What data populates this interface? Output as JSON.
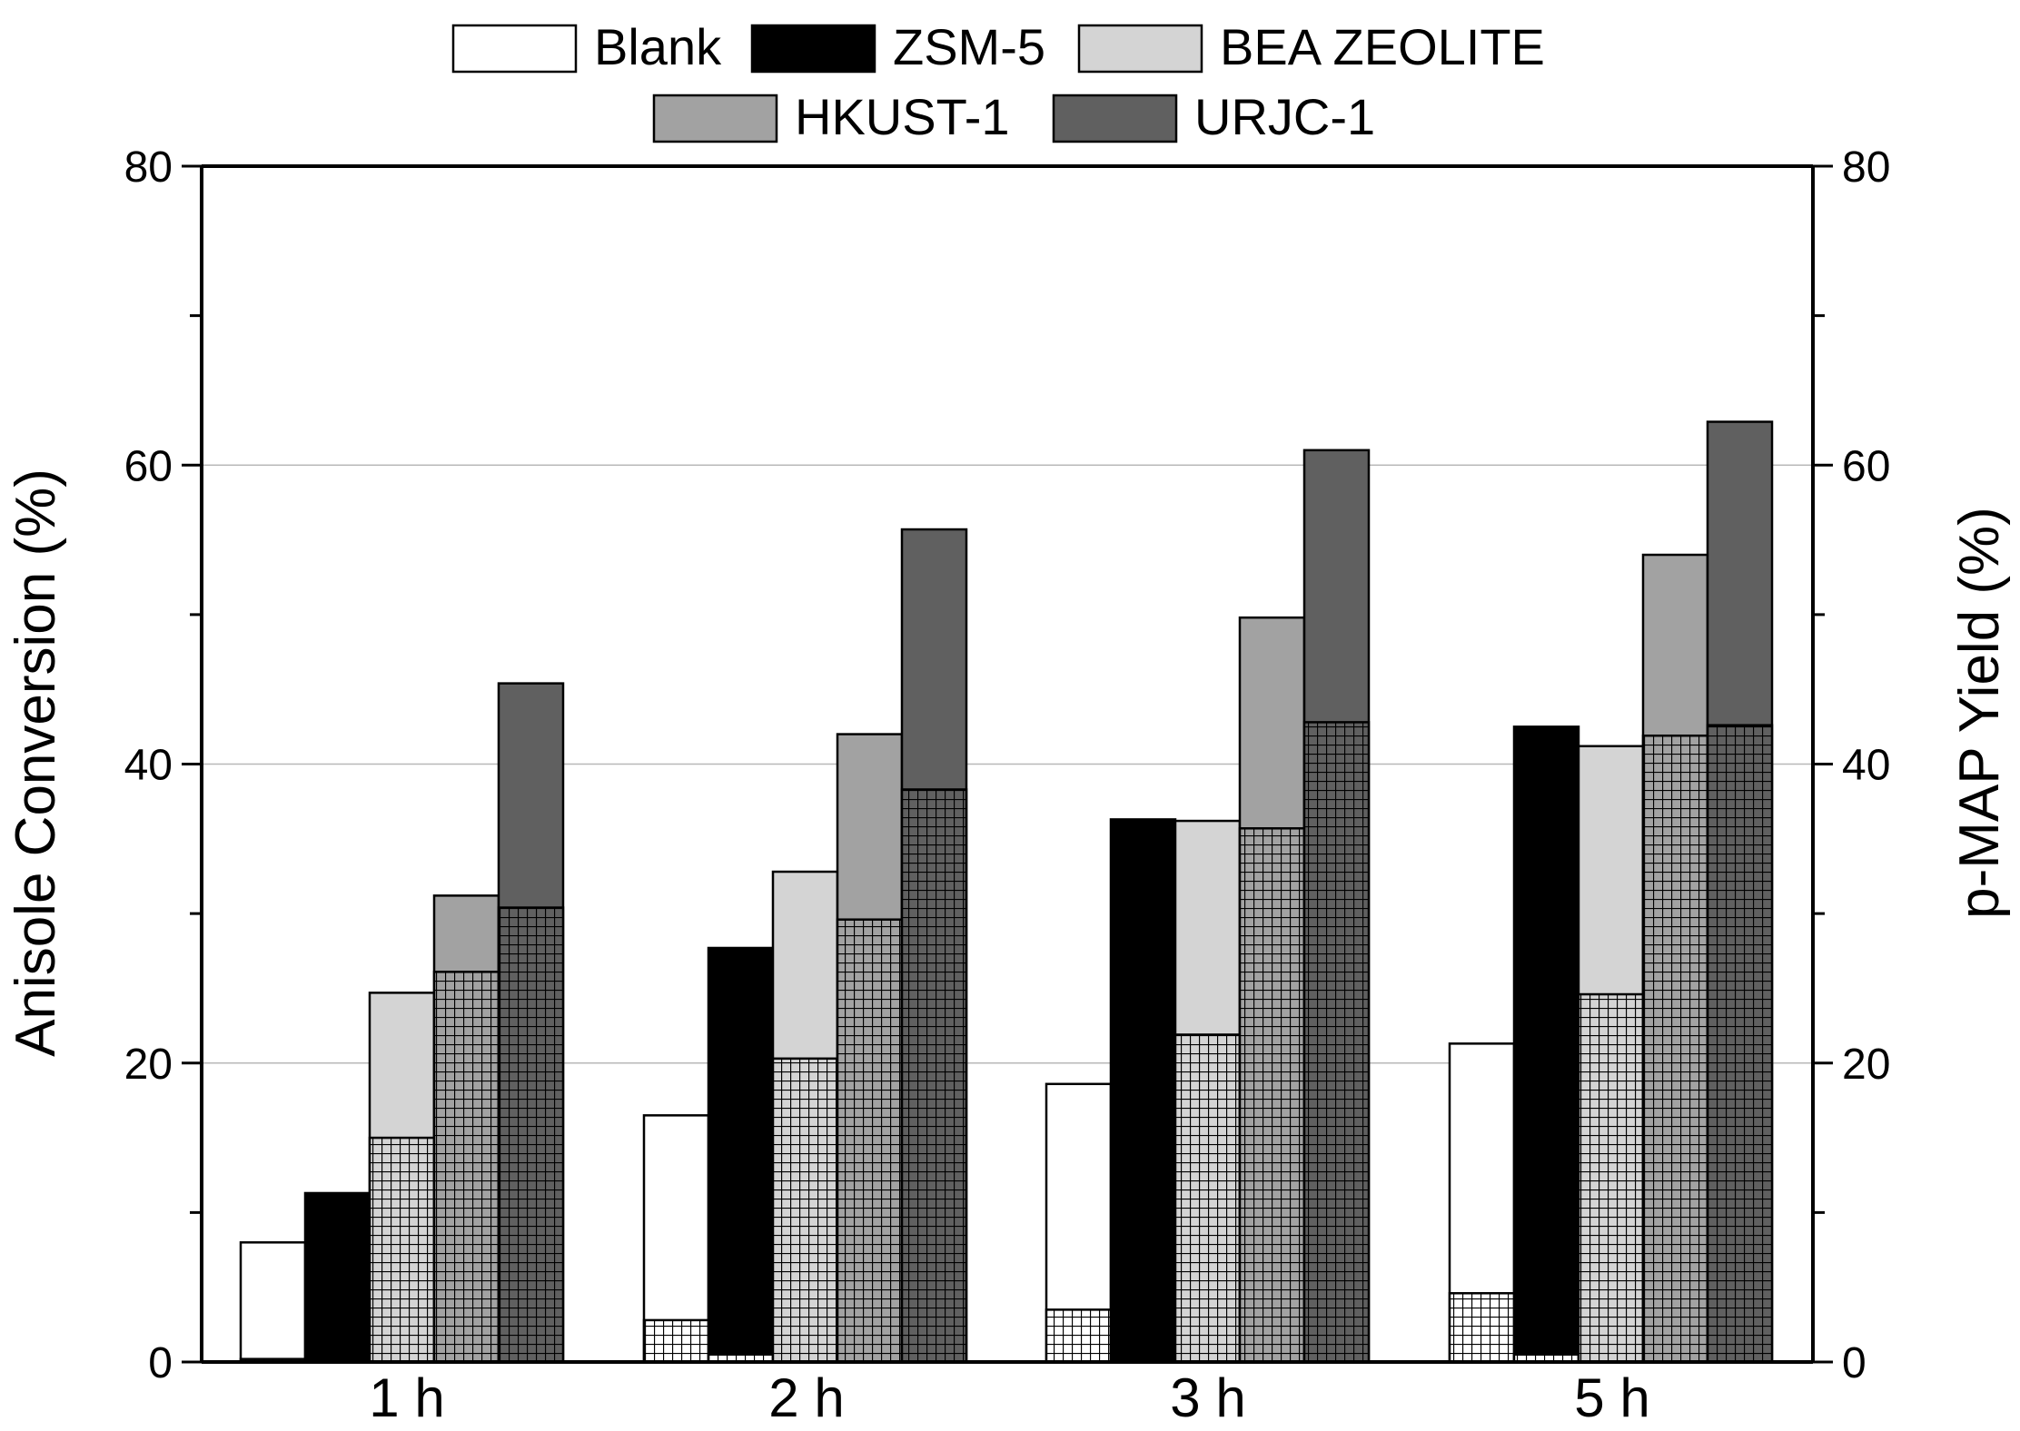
{
  "chart_data": {
    "type": "bar",
    "categories": [
      "1 h",
      "2 h",
      "3 h",
      "5 h"
    ],
    "series": [
      {
        "name": "Blank",
        "color": "#ffffff",
        "conversion": [
          8.0,
          16.5,
          18.6,
          21.3
        ],
        "yield": [
          0.2,
          2.8,
          3.5,
          4.6
        ]
      },
      {
        "name": "ZSM-5",
        "color": "#000000",
        "conversion": [
          11.3,
          27.7,
          36.3,
          42.5
        ],
        "yield": [
          0.0,
          0.5,
          0.0,
          0.5
        ]
      },
      {
        "name": "BEA ZEOLITE",
        "color": "#d4d4d4",
        "conversion": [
          24.7,
          32.8,
          36.2,
          41.2
        ],
        "yield": [
          15.0,
          20.3,
          21.9,
          24.6
        ]
      },
      {
        "name": "HKUST-1",
        "color": "#a2a2a2",
        "conversion": [
          31.2,
          42.0,
          49.8,
          54.0
        ],
        "yield": [
          26.1,
          29.6,
          35.7,
          41.9
        ]
      },
      {
        "name": "URJC-1",
        "color": "#606060",
        "conversion": [
          45.4,
          55.7,
          61.0,
          62.9
        ],
        "yield": [
          30.4,
          38.3,
          42.8,
          42.6
        ]
      }
    ],
    "ylabel": "Anisole Conversion (%)",
    "y2label": "p-MAP Yield (%)",
    "ylim": [
      0,
      80
    ],
    "y2lim": [
      0,
      80
    ],
    "yticks": [
      "0",
      "20",
      "40",
      "60",
      "80"
    ],
    "y2ticks": [
      "0",
      "20",
      "40",
      "60",
      "80"
    ],
    "grid": true,
    "legend_position": "top",
    "hatch_meaning": "cross-hatched lower segment = p-MAP yield"
  }
}
